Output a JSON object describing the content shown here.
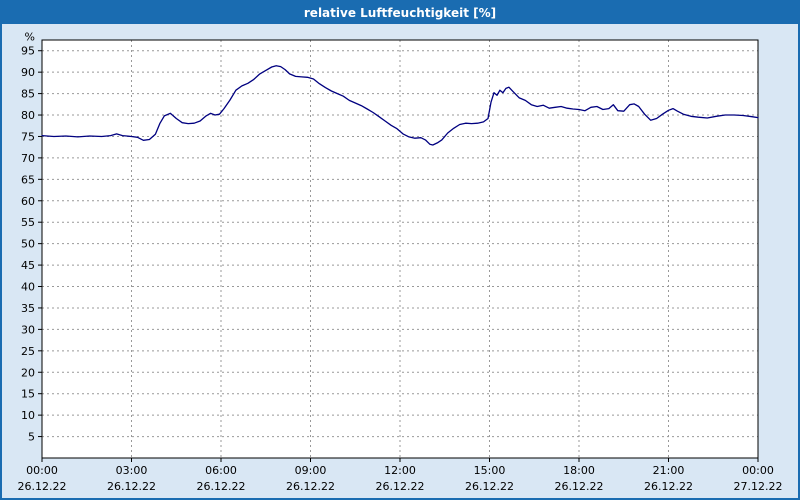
{
  "window": {
    "title": "relative Luftfeuchtigkeit [%]"
  },
  "colors": {
    "titlebar_bg": "#1a6cb1",
    "window_bg": "#d9e7f4",
    "plot_bg": "#ffffff",
    "grid": "#999999",
    "frame": "#000000",
    "line": "#000080"
  },
  "chart_data": {
    "type": "line",
    "title": "relative Luftfeuchtigkeit [%]",
    "ylabel": "%",
    "ylim": [
      0,
      97.5
    ],
    "xlim_hours": [
      0,
      24
    ],
    "grid": true,
    "legend": "none",
    "y_ticks": [
      95,
      90,
      85,
      80,
      75,
      70,
      65,
      60,
      55,
      50,
      45,
      40,
      35,
      30,
      25,
      20,
      15,
      10,
      5
    ],
    "x_ticks_hours": [
      0,
      3,
      6,
      9,
      12,
      15,
      18,
      21,
      24
    ],
    "x_tick_labels": [
      "00:00",
      "03:00",
      "06:00",
      "09:00",
      "12:00",
      "15:00",
      "18:00",
      "21:00",
      "00:00"
    ],
    "x_date_labels": [
      "26.12.22",
      "26.12.22",
      "26.12.22",
      "26.12.22",
      "26.12.22",
      "26.12.22",
      "26.12.22",
      "26.12.22",
      "27.12.22"
    ],
    "series": [
      {
        "name": "relative Luftfeuchtigkeit [%]",
        "points": [
          [
            0,
            75.2
          ],
          [
            0.4,
            75
          ],
          [
            0.8,
            75.1
          ],
          [
            1.2,
            74.9
          ],
          [
            1.6,
            75.1
          ],
          [
            2,
            75
          ],
          [
            2.3,
            75.2
          ],
          [
            2.5,
            75.6
          ],
          [
            2.7,
            75.2
          ],
          [
            3,
            75
          ],
          [
            3.2,
            74.8
          ],
          [
            3.4,
            74.1
          ],
          [
            3.6,
            74.3
          ],
          [
            3.8,
            75.5
          ],
          [
            3.95,
            78
          ],
          [
            4.1,
            79.8
          ],
          [
            4.3,
            80.4
          ],
          [
            4.5,
            79.2
          ],
          [
            4.7,
            78.2
          ],
          [
            4.9,
            78
          ],
          [
            5.1,
            78.1
          ],
          [
            5.3,
            78.6
          ],
          [
            5.5,
            79.8
          ],
          [
            5.65,
            80.4
          ],
          [
            5.8,
            80
          ],
          [
            5.95,
            80.2
          ],
          [
            6.1,
            81.5
          ],
          [
            6.3,
            83.5
          ],
          [
            6.5,
            85.8
          ],
          [
            6.7,
            86.8
          ],
          [
            6.9,
            87.4
          ],
          [
            7.1,
            88.3
          ],
          [
            7.3,
            89.6
          ],
          [
            7.5,
            90.4
          ],
          [
            7.7,
            91.2
          ],
          [
            7.85,
            91.5
          ],
          [
            8,
            91.3
          ],
          [
            8.15,
            90.6
          ],
          [
            8.3,
            89.6
          ],
          [
            8.5,
            89
          ],
          [
            8.7,
            88.9
          ],
          [
            8.9,
            88.8
          ],
          [
            9.1,
            88.4
          ],
          [
            9.3,
            87.3
          ],
          [
            9.5,
            86.4
          ],
          [
            9.7,
            85.6
          ],
          [
            9.9,
            85
          ],
          [
            10.1,
            84.4
          ],
          [
            10.3,
            83.4
          ],
          [
            10.5,
            82.8
          ],
          [
            10.7,
            82.2
          ],
          [
            10.9,
            81.4
          ],
          [
            11.1,
            80.6
          ],
          [
            11.3,
            79.6
          ],
          [
            11.5,
            78.6
          ],
          [
            11.7,
            77.6
          ],
          [
            11.9,
            76.8
          ],
          [
            12.1,
            75.6
          ],
          [
            12.3,
            74.9
          ],
          [
            12.5,
            74.6
          ],
          [
            12.7,
            74.7
          ],
          [
            12.85,
            74.2
          ],
          [
            13,
            73.2
          ],
          [
            13.1,
            73
          ],
          [
            13.25,
            73.5
          ],
          [
            13.4,
            74.2
          ],
          [
            13.6,
            75.8
          ],
          [
            13.8,
            76.9
          ],
          [
            14,
            77.8
          ],
          [
            14.2,
            78.1
          ],
          [
            14.4,
            78
          ],
          [
            14.6,
            78.1
          ],
          [
            14.8,
            78.4
          ],
          [
            14.95,
            79.2
          ],
          [
            15.05,
            83
          ],
          [
            15.15,
            85.2
          ],
          [
            15.25,
            84.6
          ],
          [
            15.35,
            85.8
          ],
          [
            15.45,
            85.2
          ],
          [
            15.55,
            86.2
          ],
          [
            15.65,
            86.5
          ],
          [
            15.8,
            85.4
          ],
          [
            16,
            84
          ],
          [
            16.2,
            83.4
          ],
          [
            16.4,
            82.4
          ],
          [
            16.6,
            82
          ],
          [
            16.8,
            82.3
          ],
          [
            17,
            81.6
          ],
          [
            17.2,
            81.8
          ],
          [
            17.4,
            82
          ],
          [
            17.6,
            81.6
          ],
          [
            17.8,
            81.4
          ],
          [
            18,
            81.3
          ],
          [
            18.2,
            81
          ],
          [
            18.4,
            81.8
          ],
          [
            18.6,
            82
          ],
          [
            18.8,
            81.3
          ],
          [
            19,
            81.5
          ],
          [
            19.15,
            82.4
          ],
          [
            19.3,
            81
          ],
          [
            19.5,
            80.9
          ],
          [
            19.7,
            82.4
          ],
          [
            19.85,
            82.6
          ],
          [
            20,
            82
          ],
          [
            20.2,
            80.2
          ],
          [
            20.4,
            78.8
          ],
          [
            20.6,
            79.2
          ],
          [
            20.8,
            80.2
          ],
          [
            21,
            81.1
          ],
          [
            21.15,
            81.5
          ],
          [
            21.3,
            80.9
          ],
          [
            21.5,
            80.2
          ],
          [
            21.75,
            79.7
          ],
          [
            22,
            79.5
          ],
          [
            22.3,
            79.3
          ],
          [
            22.6,
            79.7
          ],
          [
            22.9,
            80
          ],
          [
            23.2,
            80
          ],
          [
            23.5,
            79.9
          ],
          [
            23.8,
            79.6
          ],
          [
            24,
            79.4
          ]
        ]
      }
    ]
  }
}
